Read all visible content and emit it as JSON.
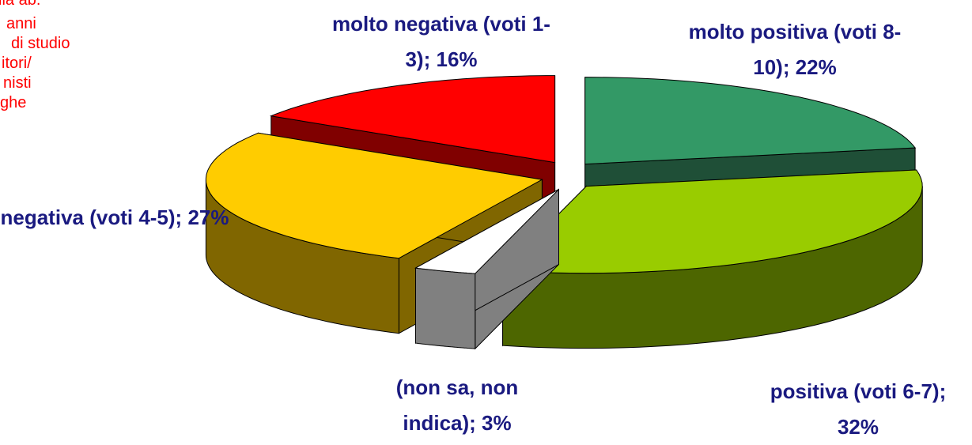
{
  "chart_data": {
    "type": "pie3d",
    "categories": [
      "molto positiva (voti 8-10);",
      "positiva (voti 6-7);",
      "(non sa, non indica);",
      "negativa (voti 4-5);",
      "molto negativa (voti 1-3);"
    ],
    "values": [
      22,
      32,
      3,
      27,
      16
    ],
    "value_labels": [
      "22%",
      "32%",
      "3%",
      "27%",
      "16%"
    ],
    "colors": [
      "#339966",
      "#99cc00",
      "#ffffff",
      "#ffcc00",
      "#ff0000"
    ],
    "side_colors": [
      "#1f4f37",
      "#4d6600",
      "#808080",
      "#806600",
      "#800000"
    ],
    "annotation_lines": [
      "lia ab.",
      "anni",
      "di studio",
      "itori/",
      "nisti",
      "ghe"
    ]
  }
}
